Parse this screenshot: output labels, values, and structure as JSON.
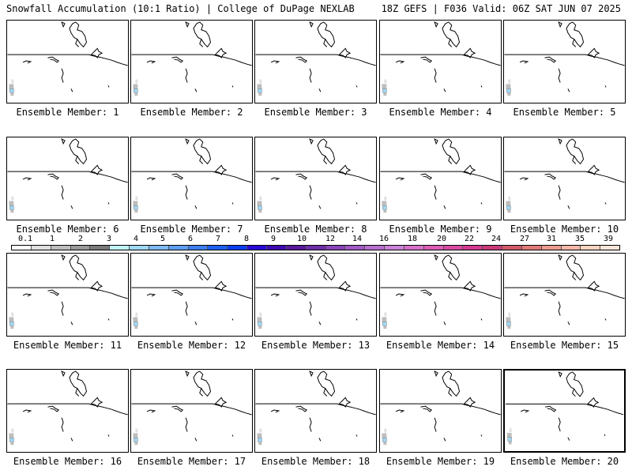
{
  "header": {
    "left_title": "Snowfall Accumulation (10:1 Ratio) | College of DuPage NEXLAB",
    "right_title": "18Z GEFS | F036 Valid: 06Z SAT JUN 07 2025"
  },
  "panels": [
    {
      "label": "Ensemble Member: 1"
    },
    {
      "label": "Ensemble Member: 2"
    },
    {
      "label": "Ensemble Member: 3"
    },
    {
      "label": "Ensemble Member: 4"
    },
    {
      "label": "Ensemble Member: 5"
    },
    {
      "label": "Ensemble Member: 6"
    },
    {
      "label": "Ensemble Member: 7"
    },
    {
      "label": "Ensemble Member: 8"
    },
    {
      "label": "Ensemble Member: 9"
    },
    {
      "label": "Ensemble Member: 10"
    },
    {
      "label": "Ensemble Member: 11"
    },
    {
      "label": "Ensemble Member: 12"
    },
    {
      "label": "Ensemble Member: 13"
    },
    {
      "label": "Ensemble Member: 14"
    },
    {
      "label": "Ensemble Member: 15"
    },
    {
      "label": "Ensemble Member: 16"
    },
    {
      "label": "Ensemble Member: 17"
    },
    {
      "label": "Ensemble Member: 18"
    },
    {
      "label": "Ensemble Member: 19"
    },
    {
      "label": "Ensemble Member: 20"
    }
  ],
  "colorbar": {
    "tick_labels": [
      "0.1",
      "1",
      "2",
      "3",
      "4",
      "5",
      "6",
      "7",
      "8",
      "9",
      "10",
      "12",
      "14",
      "16",
      "18",
      "20",
      "22",
      "24",
      "27",
      "31",
      "35",
      "39"
    ],
    "colors": [
      "#ffffff",
      "#e0e0e0",
      "#bdbdbd",
      "#9a9a9a",
      "#7a7a7a",
      "#bff3f5",
      "#9fd8f5",
      "#7fbaf0",
      "#5f9ff0",
      "#3f7ff0",
      "#1f5ff0",
      "#0a3ff0",
      "#2a0ad8",
      "#3f0ab0",
      "#5a1a9a",
      "#6e2ea8",
      "#8a44b8",
      "#a25ac4",
      "#b870d0",
      "#cc82d8",
      "#d670c8",
      "#dc5cb6",
      "#d84aa2",
      "#d23a90",
      "#c83a7a",
      "#d05a6a",
      "#e07a78",
      "#ec9a90",
      "#f4b8a8",
      "#f8d4c0",
      "#fae6d8"
    ]
  }
}
